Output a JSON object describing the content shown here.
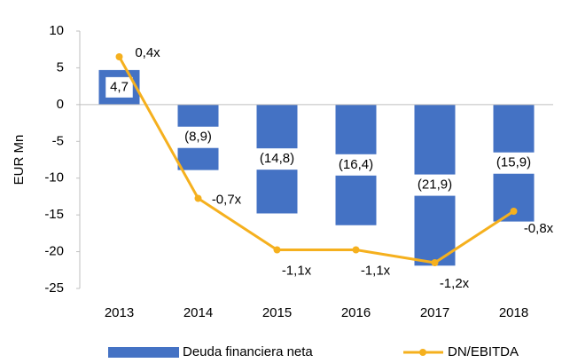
{
  "chart_data": {
    "type": "bar_line",
    "y_label": "EUR Mn",
    "categories": [
      "2013",
      "2014",
      "2015",
      "2016",
      "2017",
      "2018"
    ],
    "series": [
      {
        "name": "Deuda financiera neta",
        "type": "bar",
        "color": "#4472c4",
        "values": [
          4.7,
          -8.9,
          -14.8,
          -16.4,
          -21.9,
          -15.9
        ],
        "value_labels": [
          "4,7",
          "(8,9)",
          "(14,8)",
          "(16,4)",
          "(21,9)",
          "(15,9)"
        ]
      },
      {
        "name": "DN/EBITDA",
        "type": "line",
        "axis": "y2",
        "color": "#f5b01e",
        "values": [
          0.4,
          -0.7,
          -1.1,
          -1.1,
          -1.2,
          -0.8
        ],
        "value_labels": [
          "0,4x",
          "-0,7x",
          "-1,1x",
          "-1,1x",
          "-1,2x",
          "-0,8x"
        ]
      }
    ],
    "ylim": [
      -25,
      10
    ],
    "yticks": [
      -25,
      -20,
      -15,
      -10,
      -5,
      0,
      5,
      10
    ],
    "y2lim": [
      -1.4,
      0.6
    ],
    "legend": "bottom",
    "grid": false
  }
}
